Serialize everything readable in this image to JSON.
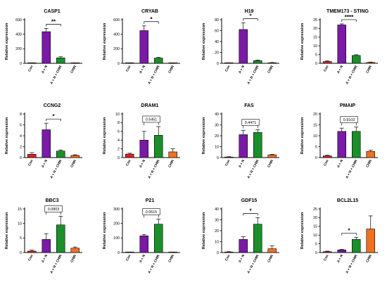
{
  "y_axis_label": "Relative expression",
  "chart_data": [
    {
      "type": "bar",
      "title": "CASP1",
      "categories": [
        "Con",
        "A + N",
        "A + N + CHIR",
        "CHIR"
      ],
      "values": [
        0.5,
        435,
        75,
        1
      ],
      "errors": [
        1,
        45,
        15,
        2
      ],
      "colors": [
        "#e02020",
        "#7a1aa6",
        "#1a8f2a",
        "#f07020"
      ],
      "ylim": [
        0,
        600
      ],
      "yticks": [
        "0",
        "200",
        "400",
        "600"
      ],
      "sig": {
        "from": 1,
        "to": 2,
        "label": "**"
      }
    },
    {
      "type": "bar",
      "title": "CRYAB",
      "categories": [
        "Con",
        "A + N",
        "A + N + CHIR",
        "CHIR"
      ],
      "values": [
        0.5,
        450,
        72,
        0.5
      ],
      "errors": [
        1,
        65,
        10,
        1
      ],
      "colors": [
        "#e02020",
        "#7a1aa6",
        "#1a8f2a",
        "#f07020"
      ],
      "ylim": [
        0,
        600
      ],
      "yticks": [
        "0",
        "200",
        "400",
        "600"
      ],
      "sig": {
        "from": 1,
        "to": 2,
        "label": "*"
      }
    },
    {
      "type": "bar",
      "title": "H19",
      "categories": [
        "Con",
        "A + N",
        "A + N + CHIR",
        "CHIR"
      ],
      "values": [
        0.5,
        62,
        5,
        1
      ],
      "errors": [
        0.5,
        12,
        1,
        0.5
      ],
      "colors": [
        "#e02020",
        "#7a1aa6",
        "#1a8f2a",
        "#f07020"
      ],
      "ylim": [
        0,
        80
      ],
      "yticks": [
        "0",
        "20",
        "40",
        "60",
        "80"
      ],
      "sig": {
        "from": 1,
        "to": 2,
        "label": "*"
      }
    },
    {
      "type": "bar",
      "title": "TMEM173 - STING",
      "categories": [
        "Con",
        "A + N",
        "A + N + CHIR",
        "CHIR"
      ],
      "values": [
        1,
        22,
        4.5,
        0.5
      ],
      "errors": [
        0.4,
        0.6,
        0.4,
        0.2
      ],
      "colors": [
        "#e02020",
        "#7a1aa6",
        "#1a8f2a",
        "#f07020"
      ],
      "ylim": [
        0,
        25
      ],
      "yticks": [
        "0",
        "5",
        "10",
        "15",
        "20",
        "25"
      ],
      "sig": {
        "from": 1,
        "to": 2,
        "label": "****"
      }
    },
    {
      "type": "bar",
      "title": "CCNG2",
      "categories": [
        "Con",
        "A + N",
        "A + N + CHIR",
        "CHIR"
      ],
      "values": [
        0.6,
        5.1,
        1.2,
        0.4
      ],
      "errors": [
        0.3,
        1.2,
        0.2,
        0.1
      ],
      "colors": [
        "#e02020",
        "#7a1aa6",
        "#1a8f2a",
        "#f07020"
      ],
      "ylim": [
        0,
        8
      ],
      "yticks": [
        "0",
        "2",
        "4",
        "6",
        "8"
      ],
      "sig": {
        "from": 1,
        "to": 2,
        "label": "*"
      }
    },
    {
      "type": "bar",
      "title": "DRAM1",
      "categories": [
        "Con",
        "A + N",
        "A + N + CHIR",
        "CHIR"
      ],
      "values": [
        0.8,
        4.0,
        5.1,
        1.3
      ],
      "errors": [
        0.2,
        2.0,
        2.0,
        0.7
      ],
      "colors": [
        "#e02020",
        "#7a1aa6",
        "#1a8f2a",
        "#f07020"
      ],
      "ylim": [
        0,
        10
      ],
      "yticks": [
        "0",
        "2",
        "4",
        "6",
        "8",
        "10"
      ],
      "sig": {
        "from": 1,
        "to": 2,
        "label": "0.5451"
      }
    },
    {
      "type": "bar",
      "title": "FAS",
      "categories": [
        "Con",
        "A + N",
        "A + N + CHIR",
        "CHIR"
      ],
      "values": [
        0.5,
        21,
        23,
        2.5
      ],
      "errors": [
        0.3,
        4,
        2.5,
        0.5
      ],
      "colors": [
        "#e02020",
        "#7a1aa6",
        "#1a8f2a",
        "#f07020"
      ],
      "ylim": [
        0,
        40
      ],
      "yticks": [
        "0",
        "10",
        "20",
        "30",
        "40"
      ],
      "sig": {
        "from": 1,
        "to": 2,
        "label": "0.4471"
      }
    },
    {
      "type": "bar",
      "title": "PMAIP",
      "categories": [
        "Con",
        "A + N",
        "A + N + CHIR",
        "CHIR"
      ],
      "values": [
        0.8,
        12,
        12,
        2.8
      ],
      "errors": [
        0.3,
        1.5,
        2,
        0.6
      ],
      "colors": [
        "#e02020",
        "#7a1aa6",
        "#1a8f2a",
        "#f07020"
      ],
      "ylim": [
        0,
        20
      ],
      "yticks": [
        "0",
        "5",
        "10",
        "15",
        "20"
      ],
      "sig": {
        "from": 1,
        "to": 2,
        "label": "0.9103"
      }
    },
    {
      "type": "bar",
      "title": "BBC3",
      "categories": [
        "Con",
        "A + N",
        "A + N + CHIR",
        "CHIR"
      ],
      "values": [
        0.5,
        4.5,
        9.5,
        1.5
      ],
      "errors": [
        0.4,
        2,
        3,
        0.4
      ],
      "colors": [
        "#e02020",
        "#7a1aa6",
        "#1a8f2a",
        "#f07020"
      ],
      "ylim": [
        0,
        15
      ],
      "yticks": [
        "0",
        "5",
        "10",
        "15"
      ],
      "sig": {
        "from": 1,
        "to": 2,
        "label": "0.0803"
      }
    },
    {
      "type": "bar",
      "title": "P21",
      "categories": [
        "Con",
        "A + N",
        "A + N + CHIR",
        "CHIR"
      ],
      "values": [
        0.5,
        115,
        195,
        1
      ],
      "errors": [
        0.5,
        8,
        35,
        1
      ],
      "colors": [
        "#e02020",
        "#7a1aa6",
        "#1a8f2a",
        "#f07020"
      ],
      "ylim": [
        0,
        300
      ],
      "yticks": [
        "0",
        "100",
        "200",
        "300"
      ],
      "sig": {
        "from": 1,
        "to": 2,
        "label": "0.0615"
      }
    },
    {
      "type": "bar",
      "title": "GDF15",
      "categories": [
        "Con",
        "A + N",
        "A + N + CHIR",
        "CHIR"
      ],
      "values": [
        0.5,
        12,
        26,
        3.5
      ],
      "errors": [
        0.3,
        2.5,
        6,
        2.5
      ],
      "colors": [
        "#e02020",
        "#7a1aa6",
        "#1a8f2a",
        "#f07020"
      ],
      "ylim": [
        0,
        40
      ],
      "yticks": [
        "0",
        "10",
        "20",
        "30",
        "40"
      ],
      "sig": {
        "from": 1,
        "to": 2,
        "label": "*"
      }
    },
    {
      "type": "bar",
      "title": "BCL2L15",
      "categories": [
        "Con",
        "A + N",
        "A + N + CHIR",
        "CHIR"
      ],
      "values": [
        0.5,
        1.5,
        7.5,
        13.5
      ],
      "errors": [
        0.3,
        0.3,
        1.2,
        7.5
      ],
      "colors": [
        "#e02020",
        "#7a1aa6",
        "#1a8f2a",
        "#f07020"
      ],
      "ylim": [
        0,
        25
      ],
      "yticks": [
        "0",
        "5",
        "10",
        "15",
        "20",
        "25"
      ],
      "sig": {
        "from": 1,
        "to": 2,
        "label": "*"
      }
    }
  ]
}
